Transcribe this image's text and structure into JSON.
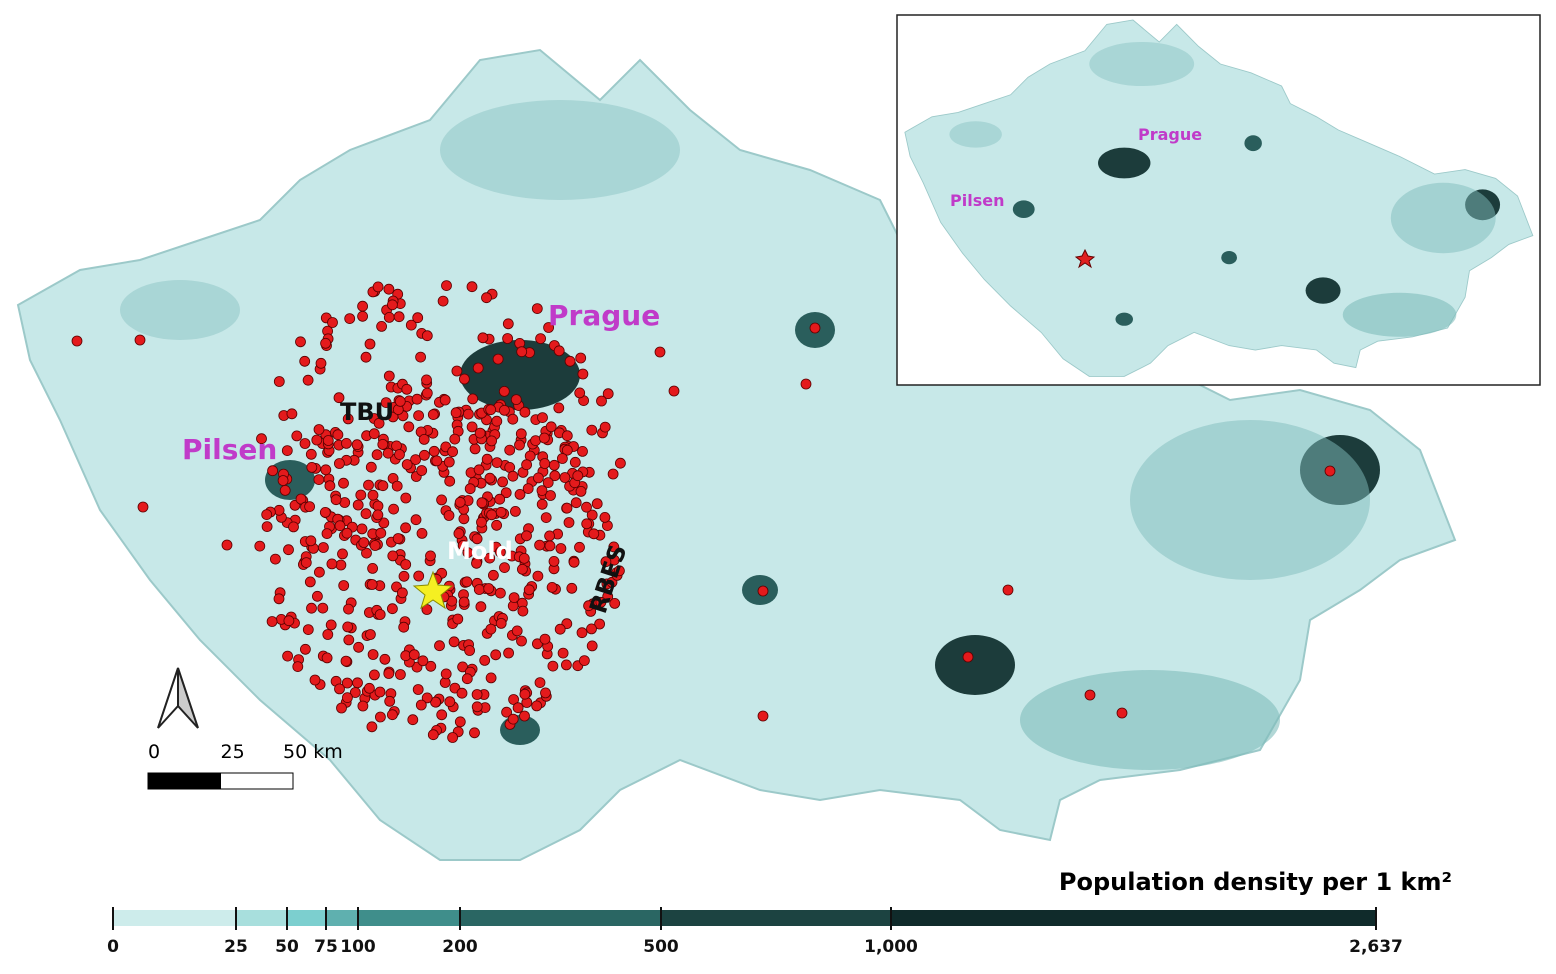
{
  "map": {
    "labels": {
      "prague": "Prague",
      "pilsen": "Pilsen",
      "tbu": "TBU",
      "mold": "Mold",
      "rbes": "RBES"
    },
    "inset": {
      "prague": "Prague",
      "pilsen": "Pilsen"
    },
    "scale_bar": {
      "ticks": [
        0,
        25,
        {
          "value": 50,
          "label": "50 km"
        }
      ]
    },
    "legend": {
      "title": "Population density per 1 km²",
      "breaks": [
        0,
        25,
        50,
        75,
        100,
        200,
        500,
        {
          "value": 1000,
          "label": "1,000"
        },
        {
          "value": 2637,
          "label": "2,637"
        }
      ],
      "colors": [
        "#cdeceb",
        "#a8dfdd",
        "#7ccfcf",
        "#5fb0af",
        "#3f8e8b",
        "#2a6663",
        "#1c4341",
        "#102b2b"
      ]
    }
  }
}
